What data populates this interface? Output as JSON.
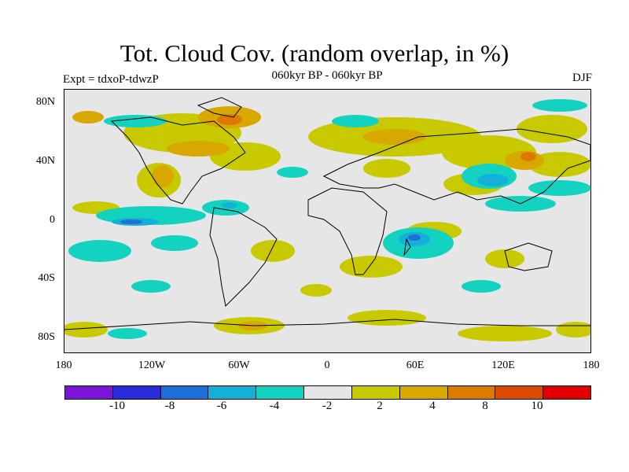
{
  "title": "Tot. Cloud Cov. (random overlap, in %)",
  "subtitle": "060kyr BP - 060kyr BP",
  "experiment": "Expt = tdxoP-tdwzP",
  "season": "DJF",
  "map": {
    "projection": "cylindrical equidistant",
    "lat_ticks": [
      "80N",
      "40N",
      "0",
      "40S",
      "80S"
    ],
    "lon_ticks": [
      "180",
      "120W",
      "60W",
      "0",
      "60E",
      "120E",
      "180"
    ],
    "background_color": "#e6e6e6"
  },
  "colorbar": {
    "colors": [
      "#7a14d6",
      "#2a2ad8",
      "#1f6fd8",
      "#14b0d8",
      "#14d2c0",
      "#e6e6e6",
      "#c9c900",
      "#d8a800",
      "#dc7a00",
      "#dc4a00",
      "#e00000"
    ],
    "labels": [
      "-10",
      "-8",
      "-6",
      "-4",
      "-2",
      "2",
      "4",
      "8",
      "10"
    ]
  }
}
